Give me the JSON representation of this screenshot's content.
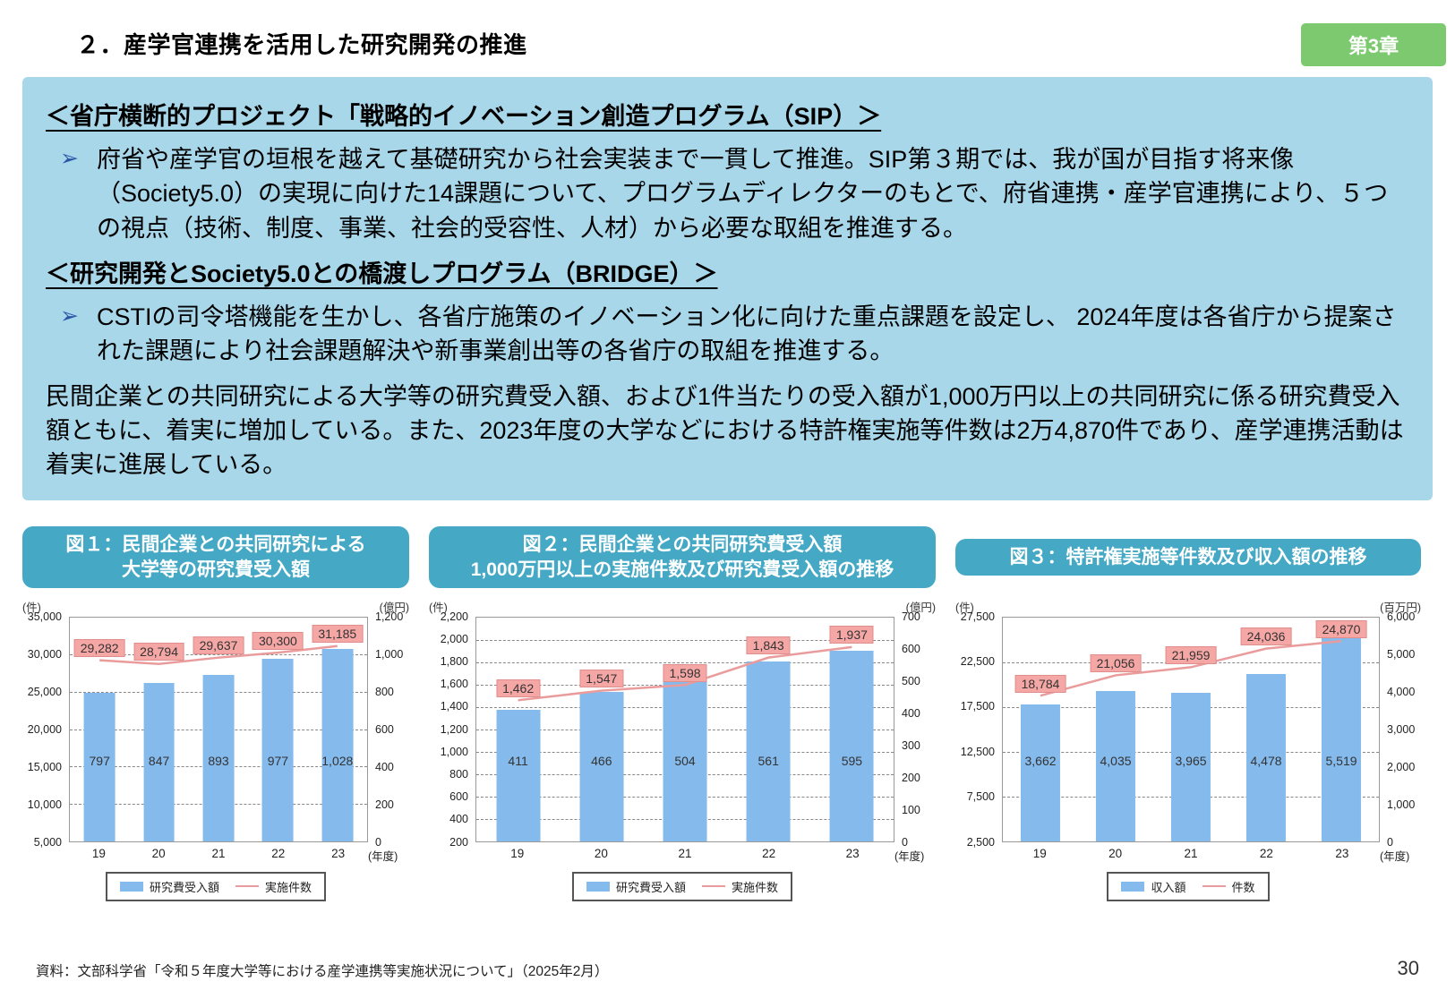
{
  "page": {
    "title": "２．産学官連携を活用した研究開発の推進",
    "chapter_badge": "第3章",
    "page_number": "30",
    "source": "資料：文部科学省「令和５年度大学等における産学連携等実施状況について」（2025年2月）"
  },
  "info_box": {
    "bullet_icon": "➢",
    "heading1": "＜省庁横断的プロジェクト「戦略的イノベーション創造プログラム（SIP）＞",
    "bullet1": "府省や産学官の垣根を越えて基礎研究から社会実装まで一貫して推進。SIP第３期では、我が国が目指す将来像（Society5.0）の実現に向けた14課題について、プログラムディレクターのもとで、府省連携・産学官連携により、５つの視点（技術、制度、事業、社会的受容性、人材）から必要な取組を推進する。",
    "heading2": "＜研究開発とSociety5.0との橋渡しプログラム（BRIDGE）＞",
    "bullet2": "CSTIの司令塔機能を生かし、各省庁施策のイノベーション化に向けた重点課題を設定し、 2024年度は各省庁から提案された課題により社会課題解決や新事業創出等の各省庁の取組を推進する。",
    "paragraph": "民間企業との共同研究による大学等の研究費受入額、および1件当たりの受入額が1,000万円以上の共同研究に係る研究費受入額ともに、着実に増加している。また、2023年度の大学などにおける特許権実施等件数は2万4,870件であり、産学連携活動は着実に進展している。"
  },
  "colors": {
    "accent_teal": "#45A9C5",
    "badge_green": "#7CC96F",
    "info_box_blue": "#A8D7EA",
    "bar_blue": "#85BAEC",
    "line_pink": "#EA9C9C",
    "label_pink": "#F5A7A5"
  },
  "chart_data": [
    {
      "type": "bar+line",
      "title_lines": [
        "図１：民間企業との共同研究による",
        "大学等の研究費受入額"
      ],
      "categories": [
        "19",
        "20",
        "21",
        "22",
        "23"
      ],
      "x_suffix": "(年度)",
      "left_axis": {
        "unit": "(件)",
        "min": 5000,
        "max": 35000,
        "tick_values": [
          35000,
          30000,
          25000,
          20000,
          15000,
          10000,
          5000
        ],
        "tick_labels": [
          "35,000",
          "30,000",
          "25,000",
          "20,000",
          "15,000",
          "10,000",
          "5,000"
        ]
      },
      "right_axis": {
        "unit": "(億円)",
        "min": 0,
        "max": 1200,
        "tick_values": [
          1200,
          1000,
          800,
          600,
          400,
          200,
          0
        ],
        "tick_labels": [
          "1,200",
          "1,000",
          "800",
          "600",
          "400",
          "200",
          "0"
        ]
      },
      "series": [
        {
          "name": "研究費受入額",
          "type": "bar",
          "axis": "right",
          "values": [
            797,
            847,
            893,
            977,
            1028
          ],
          "labels": [
            "797",
            "847",
            "893",
            "977",
            "1,028"
          ]
        },
        {
          "name": "実施件数",
          "type": "line",
          "axis": "left",
          "values": [
            29282,
            28794,
            29637,
            30300,
            31185
          ],
          "labels": [
            "29,282",
            "28,794",
            "29,637",
            "30,300",
            "31,185"
          ]
        }
      ],
      "legend": {
        "bar": "研究費受入額",
        "line": "実施件数"
      }
    },
    {
      "type": "bar+line",
      "title_lines": [
        "図２：民間企業との共同研究費受入額",
        "1,000万円以上の実施件数及び研究費受入額の推移"
      ],
      "categories": [
        "19",
        "20",
        "21",
        "22",
        "23"
      ],
      "x_suffix": "(年度)",
      "left_axis": {
        "unit": "(件)",
        "min": 200,
        "max": 2200,
        "tick_values": [
          2200,
          2000,
          1800,
          1600,
          1400,
          1200,
          1000,
          800,
          600,
          400,
          200
        ],
        "tick_labels": [
          "2,200",
          "2,000",
          "1,800",
          "1,600",
          "1,400",
          "1,200",
          "1,000",
          "800",
          "600",
          "400",
          "200"
        ]
      },
      "right_axis": {
        "unit": "(億円)",
        "min": 0,
        "max": 700,
        "tick_values": [
          700,
          600,
          500,
          400,
          300,
          200,
          100,
          0
        ],
        "tick_labels": [
          "700",
          "600",
          "500",
          "400",
          "300",
          "200",
          "100",
          "0"
        ]
      },
      "series": [
        {
          "name": "研究費受入額",
          "type": "bar",
          "axis": "right",
          "values": [
            411,
            466,
            504,
            561,
            595
          ],
          "labels": [
            "411",
            "466",
            "504",
            "561",
            "595"
          ]
        },
        {
          "name": "実施件数",
          "type": "line",
          "axis": "left",
          "values": [
            1462,
            1547,
            1598,
            1843,
            1937
          ],
          "labels": [
            "1,462",
            "1,547",
            "1,598",
            "1,843",
            "1,937"
          ]
        }
      ],
      "legend": {
        "bar": "研究費受入額",
        "line": "実施件数"
      }
    },
    {
      "type": "bar+line",
      "title_lines": [
        "図３：特許権実施等件数及び収入額の推移"
      ],
      "categories": [
        "19",
        "20",
        "21",
        "22",
        "23"
      ],
      "x_suffix": "(年度)",
      "left_axis": {
        "unit": "(件)",
        "min": 2500,
        "max": 27500,
        "tick_values": [
          27500,
          22500,
          17500,
          12500,
          7500,
          2500
        ],
        "tick_labels": [
          "27,500",
          "22,500",
          "17,500",
          "12,500",
          "7,500",
          "2,500"
        ]
      },
      "right_axis": {
        "unit": "(百万円)",
        "min": 0,
        "max": 6000,
        "tick_values": [
          6000,
          5000,
          4000,
          3000,
          2000,
          1000,
          0
        ],
        "tick_labels": [
          "6,000",
          "5,000",
          "4,000",
          "3,000",
          "2,000",
          "1,000",
          "0"
        ]
      },
      "series": [
        {
          "name": "収入額",
          "type": "bar",
          "axis": "right",
          "values": [
            3662,
            4035,
            3965,
            4478,
            5519
          ],
          "labels": [
            "3,662",
            "4,035",
            "3,965",
            "4,478",
            "5,519"
          ]
        },
        {
          "name": "件数",
          "type": "line",
          "axis": "left",
          "values": [
            18784,
            21056,
            21959,
            24036,
            24870
          ],
          "labels": [
            "18,784",
            "21,056",
            "21,959",
            "24,036",
            "24,870"
          ]
        }
      ],
      "legend": {
        "bar": "収入額",
        "line": "件数"
      }
    }
  ]
}
